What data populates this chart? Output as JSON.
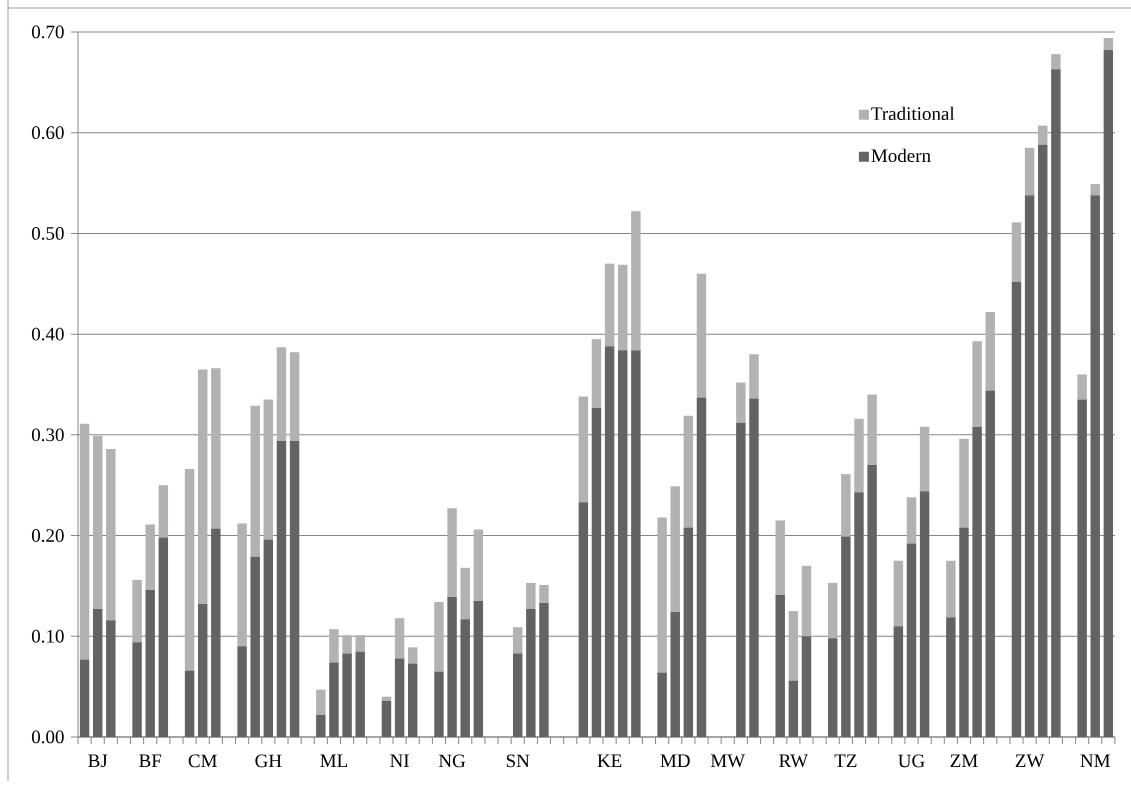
{
  "chart_data": {
    "type": "bar",
    "stacked": true,
    "grid": "y",
    "legend": "top right",
    "categories": [
      null,
      "BJ",
      null,
      null,
      null,
      "BF",
      null,
      null,
      null,
      "CM",
      null,
      null,
      null,
      null,
      "GH",
      null,
      null,
      null,
      null,
      "ML",
      null,
      null,
      null,
      null,
      "NI",
      null,
      null,
      null,
      "NG",
      null,
      null,
      null,
      null,
      "SN",
      null,
      null,
      null,
      null,
      null,
      null,
      "KE",
      null,
      null,
      null,
      null,
      "MD",
      null,
      null,
      null,
      "MW",
      null,
      null,
      null,
      null,
      "RW",
      null,
      null,
      null,
      "TZ",
      null,
      null,
      null,
      null,
      "UG",
      null,
      null,
      null,
      "ZM",
      null,
      null,
      null,
      null,
      "ZW",
      null,
      null,
      null,
      null,
      "NM",
      null
    ],
    "series": [
      {
        "name": "Modern",
        "color": "#636363",
        "values": [
          0.077,
          0.127,
          0.116,
          null,
          0.094,
          0.146,
          0.198,
          null,
          0.066,
          0.132,
          0.207,
          null,
          0.09,
          0.179,
          0.196,
          0.294,
          0.294,
          null,
          0.022,
          0.074,
          0.083,
          0.085,
          null,
          0.036,
          0.078,
          0.073,
          null,
          0.065,
          0.139,
          0.117,
          0.135,
          null,
          null,
          0.083,
          0.127,
          0.133,
          null,
          null,
          0.233,
          0.327,
          0.388,
          0.384,
          0.384,
          null,
          0.064,
          0.124,
          0.208,
          0.337,
          null,
          null,
          0.312,
          0.336,
          null,
          0.141,
          0.056,
          0.1,
          null,
          0.098,
          0.199,
          0.243,
          0.27,
          null,
          0.11,
          0.192,
          0.244,
          null,
          0.119,
          0.208,
          0.308,
          0.344,
          null,
          0.452,
          0.538,
          0.588,
          0.663,
          null,
          0.335,
          0.538,
          0.682
        ]
      },
      {
        "name": "Traditional",
        "color": "#b2b2b2",
        "values": [
          0.234,
          0.172,
          0.17,
          null,
          0.062,
          0.065,
          0.052,
          null,
          0.2,
          0.233,
          0.159,
          null,
          0.122,
          0.15,
          0.139,
          0.093,
          0.088,
          null,
          0.025,
          0.033,
          0.018,
          0.016,
          null,
          0.004,
          0.04,
          0.016,
          null,
          0.069,
          0.088,
          0.051,
          0.071,
          null,
          null,
          0.026,
          0.026,
          0.018,
          null,
          null,
          0.105,
          0.068,
          0.082,
          0.085,
          0.138,
          null,
          0.154,
          0.125,
          0.111,
          0.123,
          null,
          null,
          0.04,
          0.044,
          null,
          0.074,
          0.069,
          0.07,
          null,
          0.055,
          0.062,
          0.073,
          0.07,
          null,
          0.065,
          0.046,
          0.064,
          null,
          0.056,
          0.088,
          0.085,
          0.078,
          null,
          0.059,
          0.047,
          0.019,
          0.015,
          null,
          0.025,
          0.011,
          0.012
        ]
      }
    ],
    "ylim": [
      0,
      0.7
    ],
    "yticks": [
      {
        "value": 0,
        "label": "0.00"
      },
      {
        "value": 0.1,
        "label": "0.10"
      },
      {
        "value": 0.2,
        "label": "0.20"
      },
      {
        "value": 0.3,
        "label": "0.30"
      },
      {
        "value": 0.4,
        "label": "0.40"
      },
      {
        "value": 0.5,
        "label": "0.50"
      },
      {
        "value": 0.6,
        "label": "0.60"
      },
      {
        "value": 0.7,
        "label": "0.70"
      }
    ]
  }
}
